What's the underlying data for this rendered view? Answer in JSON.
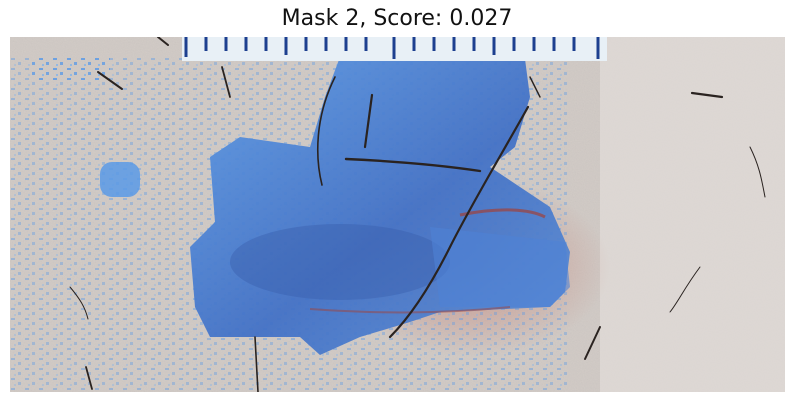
{
  "title": "Mask 2, Score: 0.027",
  "colors": {
    "skin": "#d9d3cf",
    "mask": "#4f8fe0",
    "mask_dark": "#3a63b8",
    "ruler": "#e8f0f6",
    "ruler_ticks": "#1d3f8f",
    "hair": "#2a2320",
    "redness": "#b35a4c"
  }
}
